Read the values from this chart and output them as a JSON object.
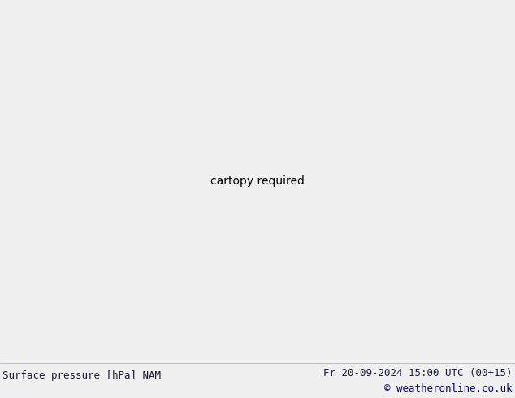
{
  "title_left": "Surface pressure [hPa] NAM",
  "title_right": "Fr 20-09-2024 15:00 UTC (00+15)",
  "copyright": "© weatheronline.co.uk",
  "bg_color": "#d0d0d0",
  "land_color": "#c8e6a8",
  "ocean_color": "#d0d0d0",
  "coast_color": "#808080",
  "border_color": "#808080",
  "footer_bg": "#f0f0f0",
  "footer_text_color": "#1a1a3a",
  "copyright_color": "#00008b",
  "contour_blue_color": "#0000cc",
  "contour_red_color": "#cc0000",
  "contour_black_color": "#000000",
  "figsize": [
    6.34,
    4.9
  ],
  "dpi": 100,
  "lon_min": -175,
  "lon_max": -45,
  "lat_min": 10,
  "lat_max": 85
}
